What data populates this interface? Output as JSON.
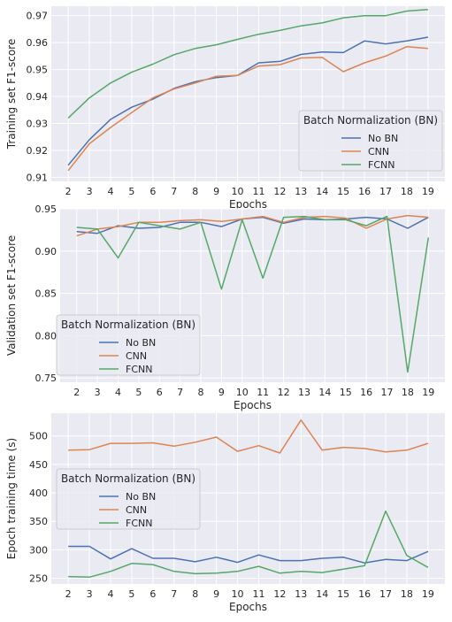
{
  "chart_data": [
    {
      "type": "line",
      "xlabel": "Epochs",
      "ylabel": "Training set F1-score",
      "x": [
        2,
        3,
        4,
        5,
        6,
        7,
        8,
        9,
        10,
        11,
        12,
        13,
        14,
        15,
        16,
        17,
        18,
        19
      ],
      "ylim": [
        0.9085,
        0.9735
      ],
      "yticks": [
        0.91,
        0.92,
        0.93,
        0.94,
        0.95,
        0.96,
        0.97
      ],
      "ytick_labels": [
        "0.91",
        "0.92",
        "0.93",
        "0.94",
        "0.95",
        "0.96",
        "0.97"
      ],
      "grid": true,
      "legend": {
        "title": "Batch Normalization (BN)",
        "placement": "lower-right"
      },
      "series": [
        {
          "name": "No BN",
          "color": "#4c72b0",
          "values": [
            0.9145,
            0.924,
            0.9315,
            0.936,
            0.939,
            0.943,
            0.9455,
            0.947,
            0.9478,
            0.9525,
            0.953,
            0.9556,
            0.9565,
            0.9563,
            0.9606,
            0.9595,
            0.9606,
            0.962
          ]
        },
        {
          "name": "CNN",
          "color": "#dd8452",
          "values": [
            0.9125,
            0.9225,
            0.9285,
            0.934,
            0.9395,
            0.9428,
            0.945,
            0.9475,
            0.9478,
            0.9513,
            0.9518,
            0.9543,
            0.9545,
            0.9492,
            0.9525,
            0.955,
            0.9585,
            0.9578
          ]
        },
        {
          "name": "FCNN",
          "color": "#55a868",
          "values": [
            0.932,
            0.9395,
            0.945,
            0.949,
            0.952,
            0.9555,
            0.9578,
            0.9592,
            0.9612,
            0.9631,
            0.9645,
            0.9662,
            0.9673,
            0.9692,
            0.97,
            0.97,
            0.9717,
            0.9723
          ]
        }
      ]
    },
    {
      "type": "line",
      "xlabel": "Epochs",
      "ylabel": "Validation set F1-score",
      "x": [
        2,
        3,
        4,
        5,
        6,
        7,
        8,
        9,
        10,
        11,
        12,
        13,
        14,
        15,
        16,
        17,
        18,
        19
      ],
      "ylim": [
        0.745,
        0.95
      ],
      "yticks": [
        0.75,
        0.8,
        0.85,
        0.9,
        0.95
      ],
      "ytick_labels": [
        "0.75",
        "0.80",
        "0.85",
        "0.90",
        "0.95"
      ],
      "grid": true,
      "legend": {
        "title": "Batch Normalization (BN)",
        "placement": "lower-left"
      },
      "series": [
        {
          "name": "No BN",
          "color": "#4c72b0",
          "values": [
            0.923,
            0.921,
            0.93,
            0.927,
            0.928,
            0.934,
            0.934,
            0.929,
            0.938,
            0.94,
            0.933,
            0.938,
            0.937,
            0.938,
            0.94,
            0.938,
            0.927,
            0.94
          ]
        },
        {
          "name": "CNN",
          "color": "#dd8452",
          "values": [
            0.918,
            0.926,
            0.929,
            0.934,
            0.934,
            0.936,
            0.937,
            0.935,
            0.938,
            0.941,
            0.934,
            0.94,
            0.941,
            0.939,
            0.927,
            0.938,
            0.942,
            0.94
          ]
        },
        {
          "name": "FCNN",
          "color": "#55a868",
          "values": [
            0.928,
            0.926,
            0.892,
            0.934,
            0.93,
            0.926,
            0.934,
            0.855,
            0.937,
            0.868,
            0.94,
            0.941,
            0.937,
            0.937,
            0.93,
            0.941,
            0.757,
            0.916
          ]
        }
      ]
    },
    {
      "type": "line",
      "xlabel": "Epochs",
      "ylabel": "Epoch training time (s)",
      "x": [
        2,
        3,
        4,
        5,
        6,
        7,
        8,
        9,
        10,
        11,
        12,
        13,
        14,
        15,
        16,
        17,
        18,
        19
      ],
      "ylim": [
        240,
        540
      ],
      "yticks": [
        250,
        300,
        350,
        400,
        450,
        500
      ],
      "ytick_labels": [
        "250",
        "300",
        "350",
        "400",
        "450",
        "500"
      ],
      "grid": true,
      "legend": {
        "title": "Batch Normalization (BN)",
        "placement": "center-left"
      },
      "series": [
        {
          "name": "No BN",
          "color": "#4c72b0",
          "values": [
            306,
            306,
            284,
            302,
            285,
            285,
            279,
            287,
            278,
            291,
            281,
            281,
            285,
            287,
            277,
            283,
            281,
            297
          ]
        },
        {
          "name": "CNN",
          "color": "#dd8452",
          "values": [
            475,
            476,
            487,
            487,
            488,
            482,
            489,
            498,
            473,
            483,
            470,
            528,
            475,
            480,
            478,
            472,
            475,
            487
          ]
        },
        {
          "name": "FCNN",
          "color": "#55a868",
          "values": [
            253,
            252,
            262,
            276,
            274,
            262,
            258,
            259,
            262,
            271,
            259,
            262,
            260,
            266,
            272,
            368,
            290,
            269
          ]
        }
      ]
    }
  ]
}
